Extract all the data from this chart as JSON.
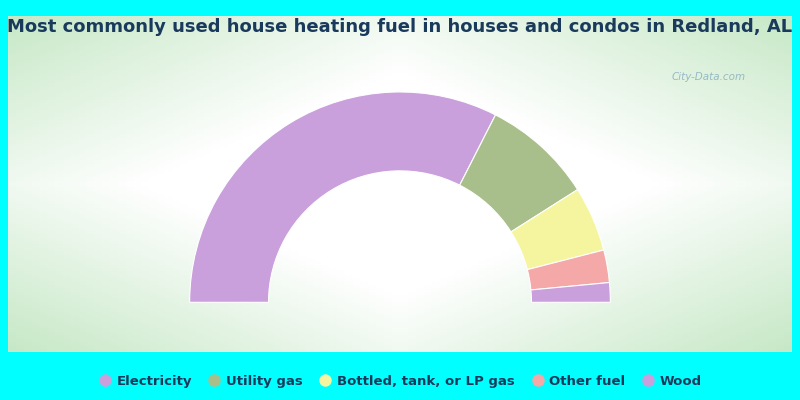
{
  "title": "Most commonly used house heating fuel in houses and condos in Redland, AL",
  "segments": [
    {
      "label": "Electricity",
      "value": 3.0,
      "color": "#c9a0dc"
    },
    {
      "label": "Utility gas",
      "value": 17.0,
      "color": "#a8bf8c"
    },
    {
      "label": "Bottled, tank, or LP gas",
      "value": 10.0,
      "color": "#f5f5a0"
    },
    {
      "label": "Other fuel",
      "value": 5.0,
      "color": "#f5a8a8"
    },
    {
      "label": "Wood",
      "value": 65.0,
      "color": "#c9a0dc"
    }
  ],
  "bg_color": "#00ffff",
  "chart_bg_corner": "#c8e8c8",
  "chart_bg_center": "#f0f8f8",
  "title_color": "#1a3a5c",
  "legend_text_color": "#1a3a5c",
  "title_fontsize": 13,
  "legend_fontsize": 9.5,
  "watermark": "City-Data.com",
  "order": [
    "Wood",
    "Utility gas",
    "Bottled, tank, or LP gas",
    "Other fuel",
    "Electricity"
  ]
}
